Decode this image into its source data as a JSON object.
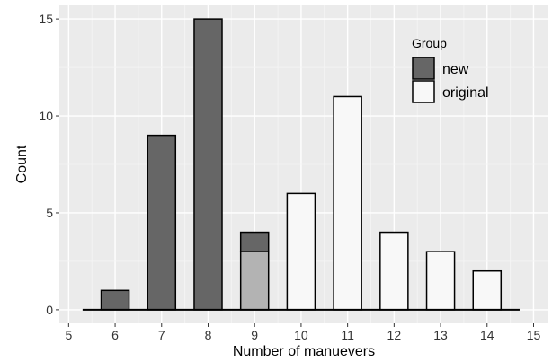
{
  "chart_data": {
    "type": "bar",
    "stacked": true,
    "title": "",
    "xlabel": "Number of manuevers",
    "ylabel": "Count",
    "xlim": [
      4.8,
      15.3
    ],
    "ylim": [
      -0.7,
      15.7
    ],
    "x_ticks": [
      5,
      6,
      7,
      8,
      9,
      10,
      11,
      12,
      13,
      14,
      15
    ],
    "y_ticks": [
      0,
      5,
      10,
      15
    ],
    "grid": true,
    "legend": {
      "title": "Group",
      "placement": "top-right"
    },
    "bar_width": 0.6,
    "baseline_range": [
      5.3,
      14.7
    ],
    "series": [
      {
        "name": "new",
        "color": "#666666",
        "points": [
          {
            "x": 6,
            "y": 1
          },
          {
            "x": 7,
            "y": 9
          },
          {
            "x": 8,
            "y": 15
          },
          {
            "x": 9,
            "y": 1
          }
        ]
      },
      {
        "name": "original",
        "color": "#f8f8f8",
        "points": [
          {
            "x": 9,
            "y": 3
          },
          {
            "x": 10,
            "y": 6
          },
          {
            "x": 11,
            "y": 11
          },
          {
            "x": 12,
            "y": 4
          },
          {
            "x": 13,
            "y": 3
          },
          {
            "x": 14,
            "y": 2
          }
        ]
      }
    ],
    "overlap_color": "#b3b3b3"
  }
}
